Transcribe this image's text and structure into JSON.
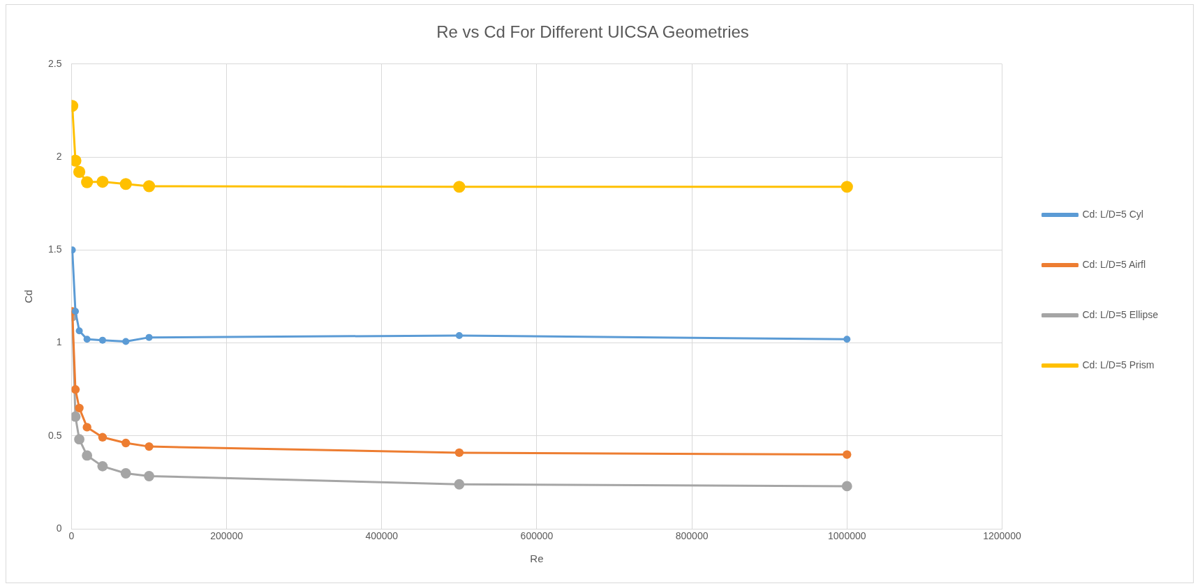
{
  "chart_data": {
    "type": "line",
    "title": "Re vs Cd For Different UICSA Geometries",
    "xlabel": "Re",
    "ylabel": "Cd",
    "x": [
      1000,
      5000,
      10000,
      20000,
      40000,
      70000,
      100000,
      500000,
      1000000
    ],
    "series": [
      {
        "name": "Cd: L/D=5 Cyl",
        "color": "#5b9bd5",
        "values": [
          1.5,
          1.17,
          1.065,
          1.02,
          1.015,
          1.008,
          1.03,
          1.04,
          1.02
        ]
      },
      {
        "name": "Cd: L/D=5 Airfl",
        "color": "#ed7d31",
        "values": [
          1.17,
          0.75,
          0.65,
          0.547,
          0.493,
          0.462,
          0.443,
          0.41,
          0.4
        ]
      },
      {
        "name": "Cd: L/D=5 Ellipse",
        "color": "#a5a5a5",
        "values": [
          1.145,
          0.604,
          0.482,
          0.395,
          0.337,
          0.299,
          0.284,
          0.24,
          0.23
        ]
      },
      {
        "name": "Cd: L/D=5 Prism",
        "color": "#ffc000",
        "values": [
          2.275,
          1.98,
          1.92,
          1.865,
          1.867,
          1.855,
          1.843,
          1.84,
          1.84
        ]
      }
    ],
    "xlim": [
      0,
      1200000
    ],
    "xticks": [
      0,
      200000,
      400000,
      600000,
      800000,
      1000000,
      1200000
    ],
    "ylim": [
      0,
      2.5
    ],
    "yticks": [
      0,
      0.5,
      1,
      1.5,
      2,
      2.5
    ],
    "grid": true,
    "legend": "right",
    "marker": "circle",
    "line_style": "solid"
  }
}
